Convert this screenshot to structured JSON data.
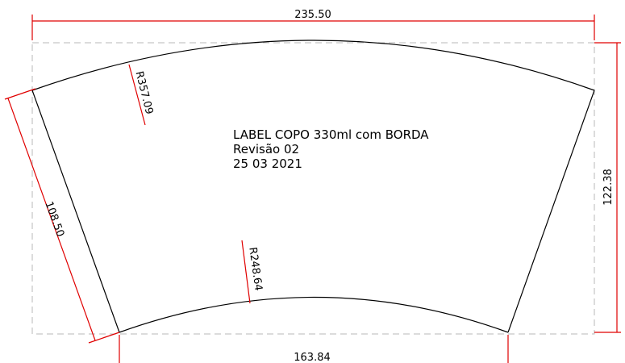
{
  "drawing": {
    "title_block": {
      "line1": "LABEL COPO 330ml com BORDA",
      "line2": "Revisão 02",
      "line3": "25 03 2021"
    },
    "dimensions": {
      "top_width": "235.50",
      "bottom_width": "163.84",
      "height": "122.38",
      "side_length": "108.50",
      "outer_radius": "R357.09",
      "inner_radius": "R248.64"
    },
    "colors": {
      "outline": "#000000",
      "dimension": "#e00000",
      "bounding_box": "#b8b8b8"
    }
  }
}
